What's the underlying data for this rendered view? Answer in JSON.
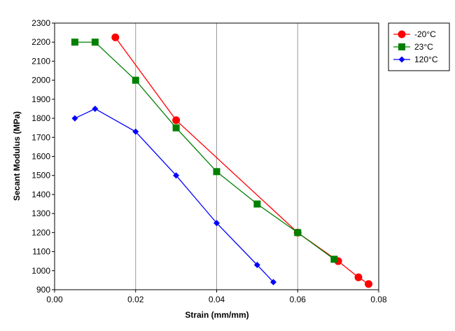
{
  "chart_data": {
    "type": "line",
    "title": "",
    "xlabel": "Strain (mm/mm)",
    "ylabel": "Secant Modulus (MPa)",
    "xlim": [
      0,
      0.08
    ],
    "ylim": [
      900,
      2300
    ],
    "x_ticks": [
      0,
      0.02,
      0.04,
      0.06,
      0.08
    ],
    "x_tick_labels": [
      "0.00",
      "0.02",
      "0.04",
      "0.06",
      "0.08"
    ],
    "y_ticks": [
      900,
      1000,
      1100,
      1200,
      1300,
      1400,
      1500,
      1600,
      1700,
      1800,
      1900,
      2000,
      2100,
      2200,
      2300
    ],
    "y_tick_labels": [
      "900",
      "1000",
      "1100",
      "1200",
      "1300",
      "1400",
      "1500",
      "1600",
      "1700",
      "1800",
      "1900",
      "2000",
      "2100",
      "2200",
      "2300"
    ],
    "grid": true,
    "legend_position": "top-right",
    "series": [
      {
        "name": "-20°C",
        "color": "#ff0000",
        "marker": "circle",
        "x": [
          0.015,
          0.03,
          0.06,
          0.07,
          0.075,
          0.0775
        ],
        "y": [
          2225,
          1790,
          1200,
          1050,
          965,
          930
        ]
      },
      {
        "name": "23°C",
        "color": "#008000",
        "marker": "square",
        "x": [
          0.005,
          0.01,
          0.02,
          0.03,
          0.04,
          0.05,
          0.06,
          0.069
        ],
        "y": [
          2200,
          2200,
          2000,
          1750,
          1520,
          1350,
          1200,
          1060
        ]
      },
      {
        "name": "120°C",
        "color": "#0000ff",
        "marker": "diamond",
        "x": [
          0.005,
          0.01,
          0.02,
          0.03,
          0.04,
          0.05,
          0.054
        ],
        "y": [
          1800,
          1850,
          1730,
          1500,
          1250,
          1030,
          940
        ]
      }
    ]
  }
}
